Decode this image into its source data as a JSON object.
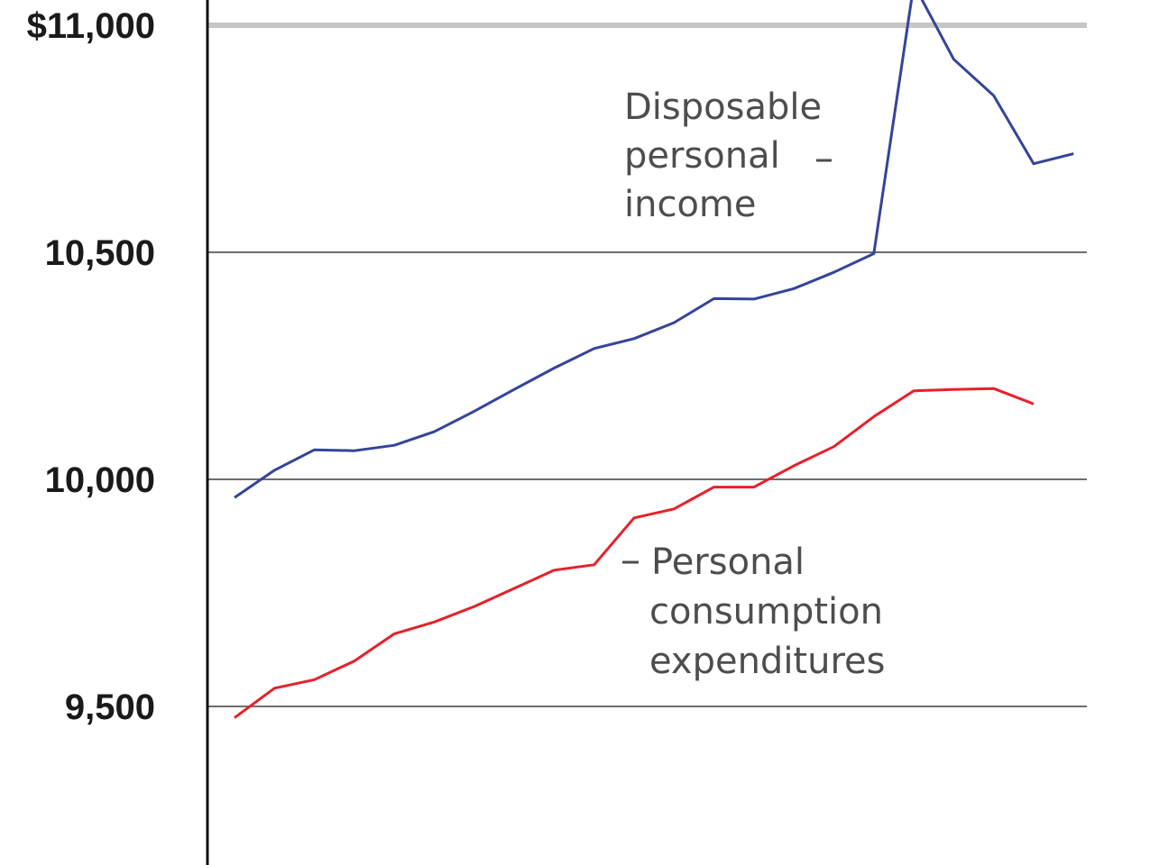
{
  "chart_data": {
    "type": "line",
    "title": "",
    "xlabel": "",
    "ylabel": "",
    "ylim": [
      9200,
      11050
    ],
    "y_ticks": [
      {
        "value": 11000,
        "label": "$11,000"
      },
      {
        "value": 10500,
        "label": "10,500"
      },
      {
        "value": 10000,
        "label": "10,000"
      },
      {
        "value": 9500,
        "label": "9,500"
      }
    ],
    "grid": true,
    "series": [
      {
        "name": "Disposable personal income",
        "label_lines": [
          "Disposable",
          "personal",
          "income"
        ],
        "color": "#33449a",
        "values": [
          9960,
          10020,
          10065,
          10063,
          10075,
          10105,
          10150,
          10198,
          10245,
          10288,
          10310,
          10345,
          10398,
          10397,
          10420,
          10456,
          10497,
          11090,
          10925,
          10845,
          10695,
          10717
        ]
      },
      {
        "name": "Personal consumption expenditures",
        "label_lines": [
          "Personal",
          "consumption",
          "expenditures"
        ],
        "color": "#e8202a",
        "values": [
          9475,
          9540,
          9559,
          9600,
          9660,
          9686,
          9720,
          9760,
          9800,
          9812,
          9915,
          9935,
          9983,
          9983,
          10030,
          10072,
          10138,
          10195,
          10198,
          10200,
          10166
        ]
      }
    ]
  }
}
